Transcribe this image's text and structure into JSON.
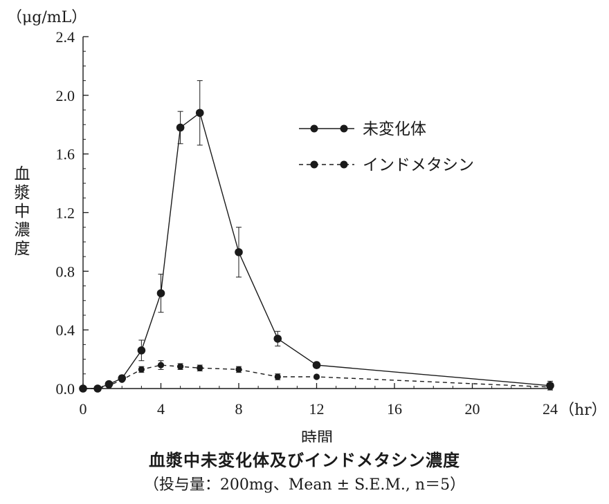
{
  "chart_data": {
    "type": "line",
    "title": "血漿中未変化体及びインドメタシン濃度",
    "subtitle": "（投与量：200mg、Mean ± S.E.M., n＝5）",
    "xlabel": "時間",
    "x_unit": "（hr）",
    "ylabel": "血漿中濃度",
    "y_unit": "（μg/mL）",
    "xlim": [
      0,
      24
    ],
    "ylim": [
      0,
      2.4
    ],
    "x_ticks": [
      "0",
      "4",
      "8",
      "12",
      "16",
      "20",
      "24"
    ],
    "y_ticks": [
      "0.0",
      "0.4",
      "0.8",
      "1.2",
      "1.6",
      "2.0",
      "2.4"
    ],
    "grid": false,
    "legend_position": "top-right",
    "series": [
      {
        "name": "未変化体",
        "line_style": "solid",
        "color": "#1a1a1a",
        "x": [
          0,
          0.75,
          1.33,
          2,
          3,
          4,
          5,
          6,
          8,
          10,
          12,
          24
        ],
        "y": [
          0.0,
          0.0,
          0.03,
          0.07,
          0.26,
          0.65,
          1.78,
          1.88,
          0.93,
          0.34,
          0.16,
          0.02
        ],
        "err": [
          0,
          0,
          0.01,
          0.02,
          0.07,
          0.13,
          0.11,
          0.22,
          0.17,
          0.05,
          0.02,
          0.03
        ]
      },
      {
        "name": "インドメタシン",
        "line_style": "dashed",
        "color": "#1a1a1a",
        "x": [
          0,
          0.75,
          1.33,
          2,
          3,
          4,
          5,
          6,
          8,
          10,
          12,
          24
        ],
        "y": [
          0.0,
          0.0,
          0.02,
          0.06,
          0.13,
          0.16,
          0.15,
          0.14,
          0.13,
          0.08,
          0.08,
          0.01
        ],
        "err": [
          0,
          0,
          0.01,
          0.01,
          0.02,
          0.03,
          0.02,
          0.02,
          0.02,
          0.02,
          0.01,
          0.01
        ]
      }
    ]
  }
}
